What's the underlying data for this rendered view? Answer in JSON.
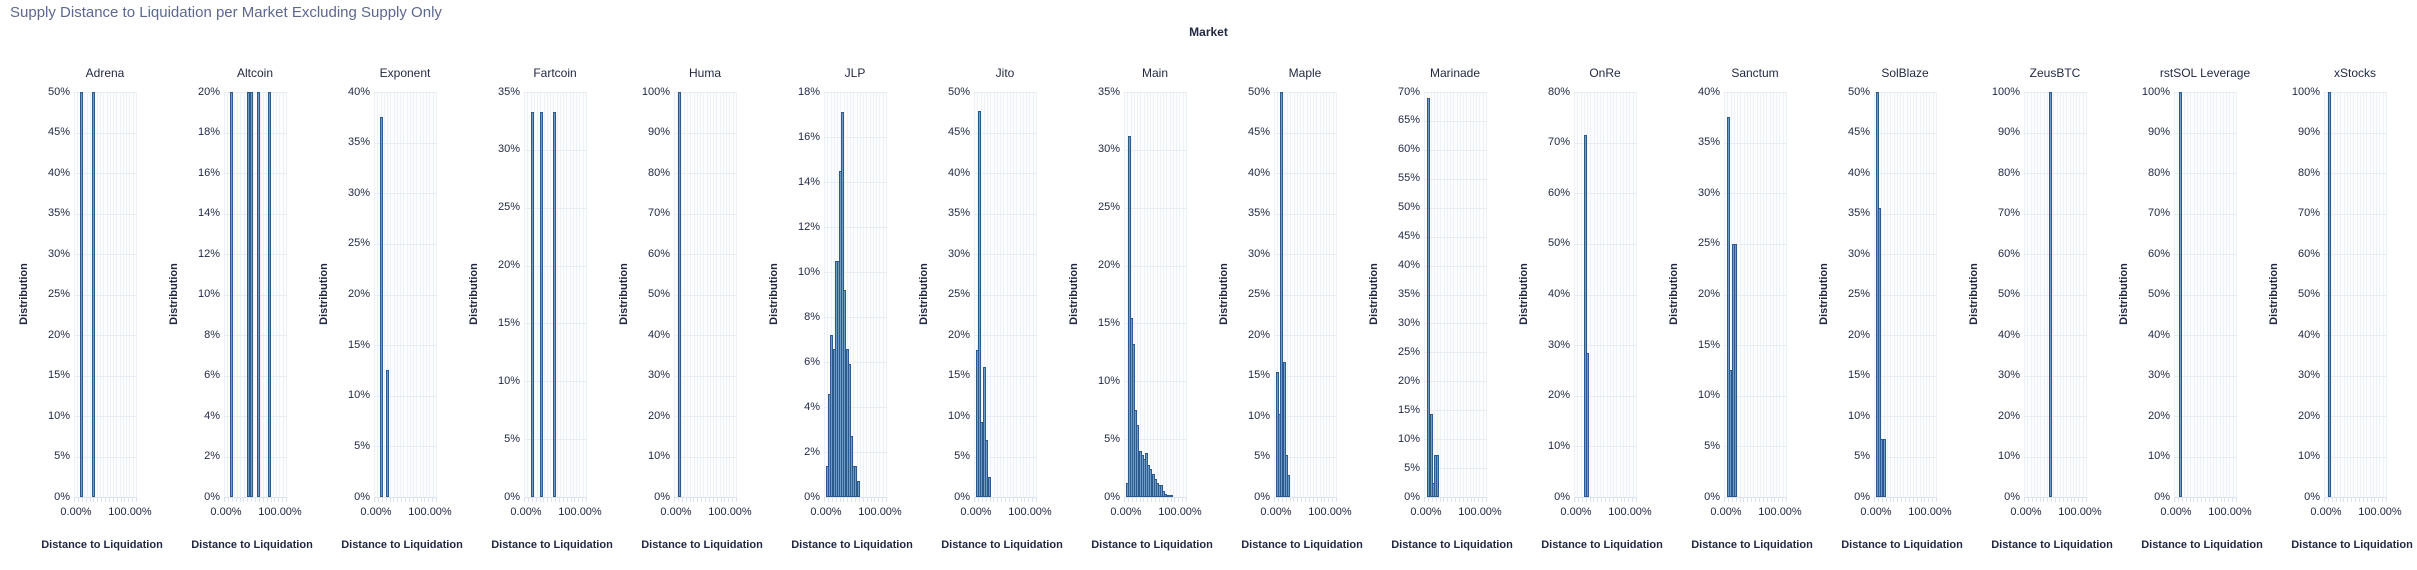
{
  "page": {
    "title": "Supply Distance to Liquidation per Market Excluding Supply Only"
  },
  "chart_data": {
    "type": "bar",
    "subtype": "faceted-histograms",
    "title": "Supply Distance to Liquidation per Market Excluding Supply Only",
    "facet_label": "Market",
    "xlabel": "Distance to Liquidation",
    "ylabel": "Distribution",
    "x_tick_labels": [
      "0.00%",
      "100.00%"
    ],
    "x_axis_range_pct": [
      0,
      110
    ],
    "grid": true,
    "colors": {
      "bar_fill": "#6f9cc6",
      "bar_stroke": "#2d5a8c",
      "gridline": "#e8edf4",
      "minor_gridline": "#eef1f7",
      "title_text": "#5d6890",
      "axis_text": "#1f2742"
    },
    "panels": [
      {
        "name": "Adrena",
        "ymax": 50,
        "ystep": 5,
        "y_ticks": [
          "50%",
          "45%",
          "40%",
          "35%",
          "30%",
          "25%",
          "20%",
          "15%",
          "10%",
          "5%",
          "0%"
        ],
        "bars": [
          [
            11,
            50
          ],
          [
            33,
            50
          ]
        ]
      },
      {
        "name": "Altcoin",
        "ymax": 20,
        "ystep": 2,
        "y_ticks": [
          "20%",
          "18%",
          "16%",
          "14%",
          "12%",
          "10%",
          "8%",
          "6%",
          "4%",
          "2%",
          "0%"
        ],
        "bars": [
          [
            10,
            20
          ],
          [
            42,
            20
          ],
          [
            48,
            20
          ],
          [
            61,
            20
          ],
          [
            80,
            20
          ]
        ]
      },
      {
        "name": "Exponent",
        "ymax": 40,
        "ystep": 5,
        "y_ticks": [
          "40%",
          "35%",
          "30%",
          "25%",
          "20%",
          "15%",
          "10%",
          "5%",
          "0%"
        ],
        "bars": [
          [
            10,
            37.5
          ],
          [
            22,
            12.5
          ]
        ]
      },
      {
        "name": "Fartcoin",
        "ymax": 35,
        "ystep": 5,
        "y_ticks": [
          "35%",
          "30%",
          "25%",
          "20%",
          "15%",
          "10%",
          "5%",
          "0%"
        ],
        "bars": [
          [
            12,
            33.3
          ],
          [
            28,
            33.3
          ],
          [
            53,
            33.3
          ]
        ]
      },
      {
        "name": "Huma",
        "ymax": 100,
        "ystep": 10,
        "y_ticks": [
          "100%",
          "90%",
          "80%",
          "70%",
          "60%",
          "50%",
          "40%",
          "30%",
          "20%",
          "10%",
          "0%"
        ],
        "bars": [
          [
            7,
            100
          ]
        ]
      },
      {
        "name": "JLP",
        "ymax": 18,
        "ystep": 2,
        "y_ticks": [
          "18%",
          "16%",
          "14%",
          "12%",
          "10%",
          "8%",
          "6%",
          "4%",
          "2%",
          "0%"
        ],
        "bars": [
          [
            3,
            1.4
          ],
          [
            7,
            4.6
          ],
          [
            11,
            7.2
          ],
          [
            15,
            6.6
          ],
          [
            19,
            10.5
          ],
          [
            23,
            10.5
          ],
          [
            27,
            14.5
          ],
          [
            31,
            17.1
          ],
          [
            35,
            9.2
          ],
          [
            39,
            6.6
          ],
          [
            43,
            5.9
          ],
          [
            47,
            2.7
          ],
          [
            51,
            1.4
          ],
          [
            55,
            1.4
          ],
          [
            60,
            0.7
          ]
        ]
      },
      {
        "name": "Jito",
        "ymax": 50,
        "ystep": 5,
        "y_ticks": [
          "50%",
          "45%",
          "40%",
          "35%",
          "30%",
          "25%",
          "20%",
          "15%",
          "10%",
          "5%",
          "0%"
        ],
        "bars": [
          [
            2,
            18.2
          ],
          [
            7,
            47.7
          ],
          [
            11,
            9.2
          ],
          [
            16,
            16
          ],
          [
            20,
            7
          ],
          [
            25,
            2.5
          ]
        ]
      },
      {
        "name": "Main",
        "ymax": 35,
        "ystep": 5,
        "y_ticks": [
          "35%",
          "30%",
          "25%",
          "20%",
          "15%",
          "10%",
          "5%",
          "0%"
        ],
        "bars": [
          [
            2,
            1.2
          ],
          [
            6,
            31.2
          ],
          [
            10,
            15.5
          ],
          [
            14,
            13.2
          ],
          [
            18,
            7.5
          ],
          [
            22,
            6.2
          ],
          [
            26,
            4
          ],
          [
            30,
            3.6
          ],
          [
            34,
            3.3
          ],
          [
            38,
            3.8
          ],
          [
            42,
            2.8
          ],
          [
            46,
            2.4
          ],
          [
            50,
            2
          ],
          [
            54,
            1.6
          ],
          [
            58,
            1.2
          ],
          [
            62,
            1
          ],
          [
            66,
            1
          ],
          [
            70,
            0.5
          ],
          [
            74,
            0.3
          ],
          [
            79,
            0.2
          ],
          [
            85,
            0.2
          ]
        ]
      },
      {
        "name": "Maple",
        "ymax": 50,
        "ystep": 5,
        "y_ticks": [
          "50%",
          "45%",
          "40%",
          "35%",
          "30%",
          "25%",
          "20%",
          "15%",
          "10%",
          "5%",
          "0%"
        ],
        "bars": [
          [
            2,
            15.4
          ],
          [
            6,
            10.3
          ],
          [
            10,
            50
          ],
          [
            15,
            16.7
          ],
          [
            19,
            5.2
          ],
          [
            24,
            2.7
          ]
        ]
      },
      {
        "name": "Marinade",
        "ymax": 70,
        "ystep": 5,
        "y_ticks": [
          "70%",
          "65%",
          "60%",
          "55%",
          "50%",
          "45%",
          "40%",
          "35%",
          "30%",
          "25%",
          "20%",
          "15%",
          "10%",
          "5%",
          "0%"
        ],
        "bars": [
          [
            5,
            69
          ],
          [
            10,
            14.3
          ],
          [
            14,
            2.4
          ],
          [
            18,
            7.2
          ],
          [
            22,
            7.2
          ]
        ]
      },
      {
        "name": "OnRe",
        "ymax": 80,
        "ystep": 10,
        "y_ticks": [
          "80%",
          "70%",
          "60%",
          "50%",
          "40%",
          "30%",
          "20%",
          "10%",
          "0%"
        ],
        "bars": [
          [
            18,
            71.5
          ],
          [
            22,
            28.5
          ]
        ]
      },
      {
        "name": "Sanctum",
        "ymax": 40,
        "ystep": 5,
        "y_ticks": [
          "40%",
          "35%",
          "30%",
          "25%",
          "20%",
          "15%",
          "10%",
          "5%",
          "0%"
        ],
        "bars": [
          [
            5,
            37.5
          ],
          [
            9,
            12.5
          ],
          [
            13,
            25
          ],
          [
            17,
            25
          ]
        ]
      },
      {
        "name": "SolBlaze",
        "ymax": 50,
        "ystep": 5,
        "y_ticks": [
          "50%",
          "45%",
          "40%",
          "35%",
          "30%",
          "25%",
          "20%",
          "15%",
          "10%",
          "5%",
          "0%"
        ],
        "bars": [
          [
            2,
            50
          ],
          [
            6,
            35.7
          ],
          [
            10,
            7.2
          ],
          [
            16,
            7.2
          ]
        ]
      },
      {
        "name": "ZeusBTC",
        "ymax": 100,
        "ystep": 10,
        "y_ticks": [
          "100%",
          "90%",
          "80%",
          "70%",
          "60%",
          "50%",
          "40%",
          "30%",
          "20%",
          "10%",
          "0%"
        ],
        "bars": [
          [
            45,
            100
          ]
        ]
      },
      {
        "name": "rstSOL Leverage",
        "ymax": 100,
        "ystep": 10,
        "y_ticks": [
          "100%",
          "90%",
          "80%",
          "70%",
          "60%",
          "50%",
          "40%",
          "30%",
          "20%",
          "10%",
          "0%"
        ],
        "bars": [
          [
            8,
            100
          ]
        ]
      },
      {
        "name": "xStocks",
        "ymax": 100,
        "ystep": 10,
        "y_ticks": [
          "100%",
          "90%",
          "80%",
          "70%",
          "60%",
          "50%",
          "40%",
          "30%",
          "20%",
          "10%",
          "0%"
        ],
        "bars": [
          [
            7,
            100
          ]
        ]
      }
    ]
  }
}
